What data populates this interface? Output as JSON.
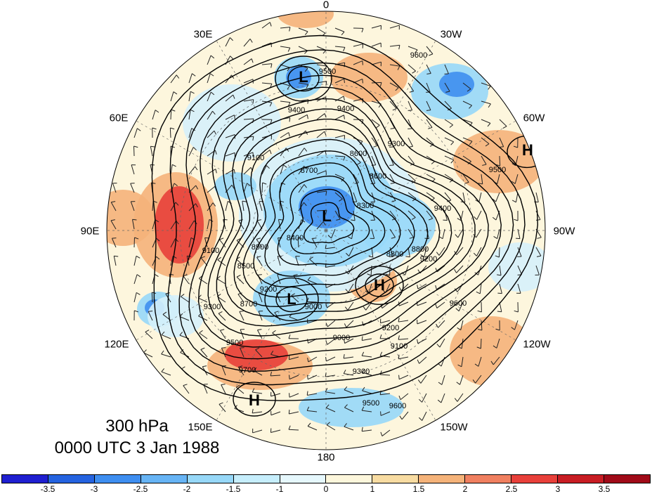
{
  "title": {
    "level": "300 hPa",
    "time": "0000 UTC 3 Jan 1988"
  },
  "longitude_labels": [
    "0",
    "30W",
    "60W",
    "90W",
    "120W",
    "150W",
    "180",
    "150E",
    "120E",
    "90E",
    "60E",
    "30E"
  ],
  "center_labels": [
    "L",
    "L",
    "L",
    "H",
    "H",
    "H"
  ],
  "contour_labels": [
    "9500",
    "9600",
    "9600",
    "9400",
    "9300",
    "9200",
    "9100",
    "9000",
    "8900",
    "8800",
    "8700",
    "8600",
    "8500",
    "8400",
    "8300",
    "9700",
    "9500",
    "9300",
    "9200",
    "9100",
    "9000",
    "9400",
    "9500",
    "9600",
    "8800",
    "8700",
    "8600",
    "9500",
    "9400",
    "9300",
    "9200",
    "9100"
  ],
  "colorbar": {
    "ticks": [
      "-3.5",
      "-3",
      "-2.5",
      "-2",
      "-1.5",
      "-1",
      "0",
      "1",
      "1.5",
      "2",
      "2.5",
      "3",
      "3.5"
    ],
    "colors": [
      "#1f1fd0",
      "#2563e0",
      "#3e8ef0",
      "#67b4f5",
      "#97d8f8",
      "#c6eefc",
      "#e6f8fd",
      "#fdf7dc",
      "#f8dca2",
      "#f5b37a",
      "#f08060",
      "#e8403a",
      "#c81d24",
      "#a00a18"
    ]
  },
  "anomaly_colors": {
    "strong_negative": "#3e8ef0",
    "negative": "#97d8f8",
    "weak_negative": "#d6f1fb",
    "weak_positive": "#fbeec9",
    "positive": "#f5b37a",
    "strong_positive": "#e8403a"
  }
}
